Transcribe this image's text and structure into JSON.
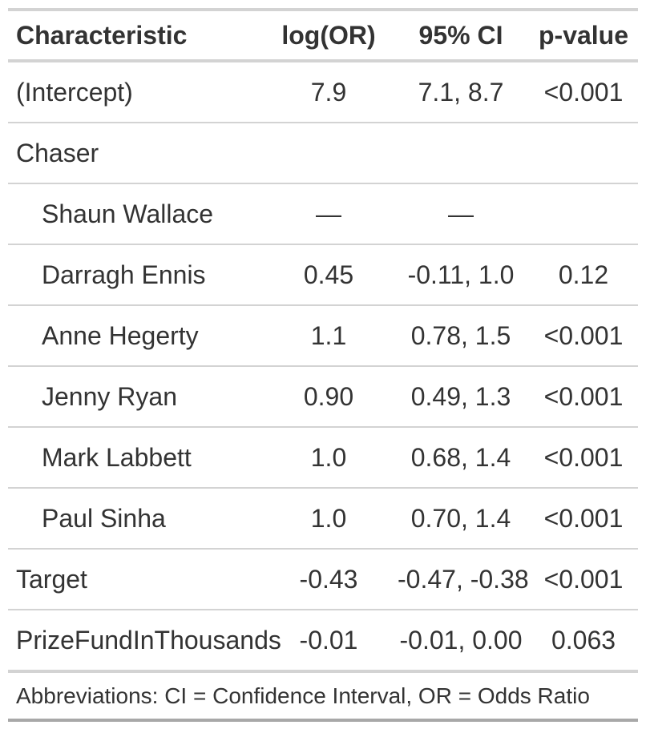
{
  "colors": {
    "text": "#333333",
    "border_light": "#D3D3D3",
    "border_dark": "#A8A8A8",
    "background": "#FFFFFF"
  },
  "chart_data": {
    "type": "table",
    "title": "",
    "columns": [
      "Characteristic",
      "log(OR)",
      "95% CI",
      "p-value"
    ],
    "rows": [
      {
        "characteristic": "(Intercept)",
        "indent": false,
        "log_or": "7.9",
        "ci_95": "7.1, 8.7",
        "p_value": "<0.001"
      },
      {
        "characteristic": "Chaser",
        "indent": false,
        "log_or": "",
        "ci_95": "",
        "p_value": ""
      },
      {
        "characteristic": "Shaun Wallace",
        "indent": true,
        "log_or": "—",
        "ci_95": "—",
        "p_value": ""
      },
      {
        "characteristic": "Darragh Ennis",
        "indent": true,
        "log_or": "0.45",
        "ci_95": "-0.11, 1.0",
        "p_value": "0.12"
      },
      {
        "characteristic": "Anne Hegerty",
        "indent": true,
        "log_or": "1.1",
        "ci_95": "0.78, 1.5",
        "p_value": "<0.001"
      },
      {
        "characteristic": "Jenny Ryan",
        "indent": true,
        "log_or": "0.90",
        "ci_95": "0.49, 1.3",
        "p_value": "<0.001"
      },
      {
        "characteristic": "Mark Labbett",
        "indent": true,
        "log_or": "1.0",
        "ci_95": "0.68, 1.4",
        "p_value": "<0.001"
      },
      {
        "characteristic": "Paul Sinha",
        "indent": true,
        "log_or": "1.0",
        "ci_95": "0.70, 1.4",
        "p_value": "<0.001"
      },
      {
        "characteristic": "Target",
        "indent": false,
        "log_or": "-0.43",
        "ci_95": "-0.47, -0.38",
        "p_value": "<0.001"
      },
      {
        "characteristic": "PrizeFundInThousands",
        "indent": false,
        "log_or": "-0.01",
        "ci_95": "-0.01, 0.00",
        "p_value": "0.063"
      }
    ],
    "footnote": "Abbreviations: CI = Confidence Interval, OR = Odds Ratio"
  }
}
